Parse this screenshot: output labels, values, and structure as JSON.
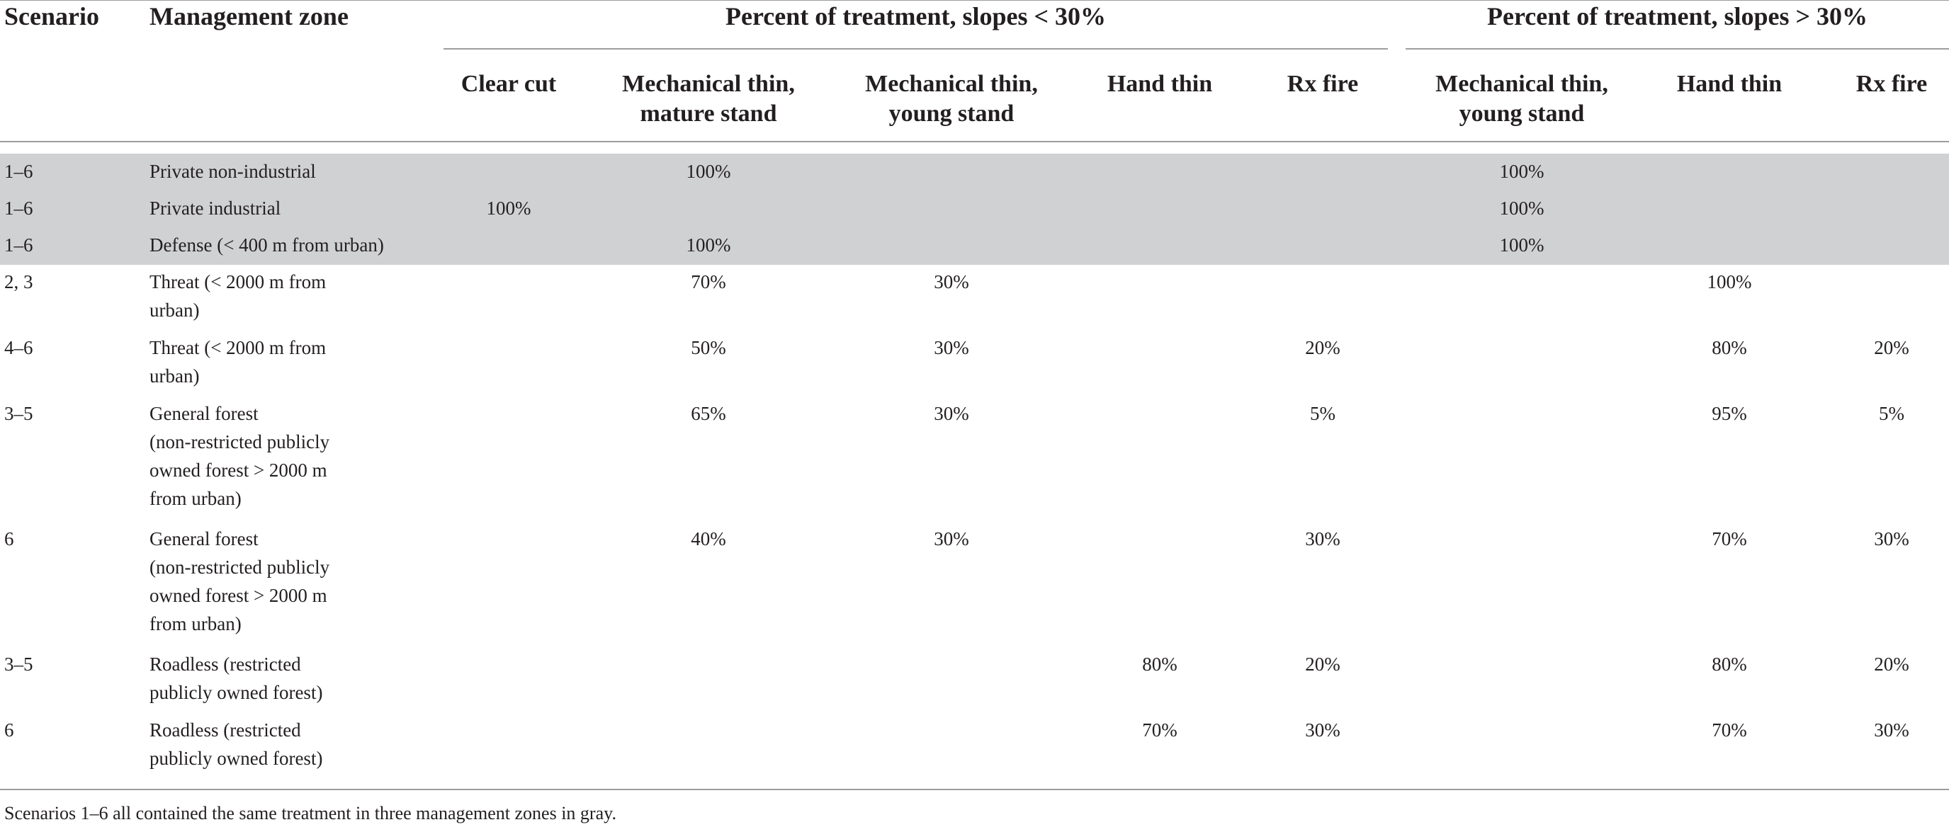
{
  "table": {
    "headers": {
      "scenario": "Scenario",
      "zone": "Management zone",
      "group_lt": "Percent of treatment, slopes < 30%",
      "group_gt": "Percent of treatment, slopes > 30%",
      "lt_columns": [
        [
          "Clear cut"
        ],
        [
          "Mechanical thin,",
          "mature stand"
        ],
        [
          "Mechanical thin,",
          "young stand"
        ],
        [
          "Hand thin"
        ],
        [
          "Rx fire"
        ]
      ],
      "gt_columns": [
        [
          "Mechanical thin,",
          "young stand"
        ],
        [
          "Hand thin"
        ],
        [
          "Rx fire"
        ]
      ]
    },
    "rows": [
      {
        "scenario": "1–6",
        "zone": [
          "Private non-industrial"
        ],
        "values": [
          "",
          "100%",
          "",
          "",
          "",
          "100%",
          "",
          ""
        ],
        "gray": true
      },
      {
        "scenario": "1–6",
        "zone": [
          "Private industrial"
        ],
        "values": [
          "100%",
          "",
          "",
          "",
          "",
          "100%",
          "",
          ""
        ],
        "gray": true
      },
      {
        "scenario": "1–6",
        "zone": [
          "Defense (< 400 m from urban)"
        ],
        "values": [
          "",
          "100%",
          "",
          "",
          "",
          "100%",
          "",
          ""
        ],
        "gray": true
      },
      {
        "scenario": "2, 3",
        "zone": [
          "Threat (< 2000 m from",
          "urban)"
        ],
        "values": [
          "",
          "70%",
          "30%",
          "",
          "",
          "",
          "100%",
          ""
        ],
        "gray": false
      },
      {
        "scenario": "4–6",
        "zone": [
          "Threat (< 2000 m from",
          "urban)"
        ],
        "values": [
          "",
          "50%",
          "30%",
          "",
          "20%",
          "",
          "80%",
          "20%"
        ],
        "gray": false
      },
      {
        "scenario": "3–5",
        "zone": [
          "General forest",
          "(non-restricted publicly",
          "owned forest > 2000 m",
          "from urban)"
        ],
        "values": [
          "",
          "65%",
          "30%",
          "",
          "5%",
          "",
          "95%",
          "5%"
        ],
        "gray": false
      },
      {
        "scenario": "6",
        "zone": [
          "General forest",
          "(non-restricted publicly",
          "owned forest > 2000 m",
          "from urban)"
        ],
        "values": [
          "",
          "40%",
          "30%",
          "",
          "30%",
          "",
          "70%",
          "30%"
        ],
        "gray": false
      },
      {
        "scenario": "3–5",
        "zone": [
          "Roadless (restricted",
          "publicly owned forest)"
        ],
        "values": [
          "",
          "",
          "",
          "80%",
          "20%",
          "",
          "80%",
          "20%"
        ],
        "gray": false
      },
      {
        "scenario": "6",
        "zone": [
          "Roadless (restricted",
          "publicly owned forest)"
        ],
        "values": [
          "",
          "",
          "",
          "70%",
          "30%",
          "",
          "70%",
          "30%"
        ],
        "gray": false
      }
    ],
    "footnote": "Scenarios 1–6 all contained the same treatment in three management zones in gray."
  }
}
